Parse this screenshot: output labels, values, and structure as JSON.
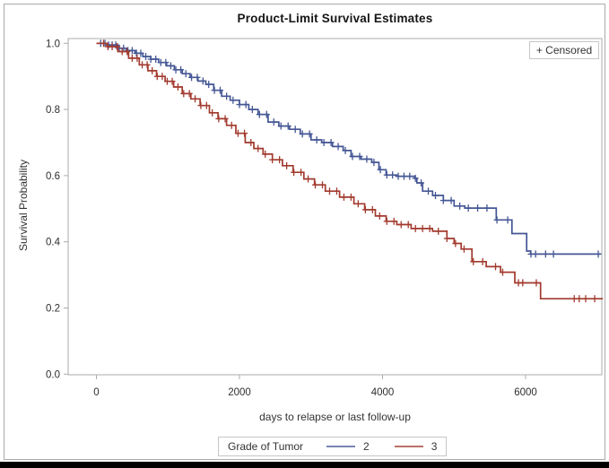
{
  "chart_data": {
    "type": "line",
    "subtype": "kaplan-meier-step",
    "title": "Product-Limit Survival Estimates",
    "censored_label": "+ Censored",
    "xlabel": "days to relapse or last follow-up",
    "ylabel": "Survival Probability",
    "legend_title": "Grade of Tumor",
    "legend_position": "bottom",
    "grid": false,
    "xlim": [
      -400,
      7150
    ],
    "ylim": [
      0.0,
      1.0
    ],
    "x_ticks": [
      0,
      2000,
      4000,
      6000
    ],
    "y_ticks": [
      0.0,
      0.2,
      0.4,
      0.6,
      0.8,
      1.0
    ],
    "frame_color": "#ababab",
    "tick_label_color": "#2e2e2e",
    "series": [
      {
        "name": "2",
        "color": "#445694",
        "points": [
          [
            0,
            1.0
          ],
          [
            160,
            0.995
          ],
          [
            300,
            0.985
          ],
          [
            420,
            0.978
          ],
          [
            540,
            0.97
          ],
          [
            650,
            0.96
          ],
          [
            760,
            0.952
          ],
          [
            870,
            0.942
          ],
          [
            980,
            0.932
          ],
          [
            1090,
            0.92
          ],
          [
            1200,
            0.908
          ],
          [
            1310,
            0.897
          ],
          [
            1420,
            0.886
          ],
          [
            1530,
            0.876
          ],
          [
            1640,
            0.858
          ],
          [
            1750,
            0.84
          ],
          [
            1870,
            0.828
          ],
          [
            2000,
            0.815
          ],
          [
            2130,
            0.8
          ],
          [
            2260,
            0.785
          ],
          [
            2400,
            0.762
          ],
          [
            2550,
            0.75
          ],
          [
            2700,
            0.74
          ],
          [
            2850,
            0.726
          ],
          [
            3000,
            0.708
          ],
          [
            3150,
            0.7
          ],
          [
            3300,
            0.688
          ],
          [
            3450,
            0.676
          ],
          [
            3560,
            0.658
          ],
          [
            3700,
            0.65
          ],
          [
            3850,
            0.64
          ],
          [
            3950,
            0.618
          ],
          [
            4050,
            0.602
          ],
          [
            4200,
            0.598
          ],
          [
            4450,
            0.592
          ],
          [
            4480,
            0.578
          ],
          [
            4560,
            0.553
          ],
          [
            4700,
            0.54
          ],
          [
            4850,
            0.525
          ],
          [
            5000,
            0.508
          ],
          [
            5150,
            0.502
          ],
          [
            5590,
            0.466
          ],
          [
            5810,
            0.425
          ],
          [
            6015,
            0.372
          ],
          [
            6070,
            0.363
          ],
          [
            7050,
            0.363
          ]
        ],
        "censor_times": [
          60,
          120,
          170,
          220,
          270,
          320,
          380,
          440,
          500,
          560,
          620,
          690,
          760,
          830,
          900,
          970,
          1040,
          1110,
          1180,
          1250,
          1330,
          1410,
          1490,
          1570,
          1650,
          1730,
          1820,
          1910,
          2000,
          2090,
          2180,
          2280,
          2380,
          2480,
          2580,
          2680,
          2780,
          2880,
          2980,
          3080,
          3180,
          3280,
          3380,
          3480,
          3580,
          3680,
          3780,
          3880,
          3970,
          4060,
          4140,
          4220,
          4300,
          4380,
          4460,
          4540,
          4640,
          4740,
          4850,
          4960,
          5080,
          5200,
          5330,
          5460,
          5600,
          5750,
          6075,
          6140,
          6280,
          6390,
          7016
        ]
      },
      {
        "name": "3",
        "color": "#A23A2E",
        "points": [
          [
            0,
            1.0
          ],
          [
            150,
            0.99
          ],
          [
            300,
            0.975
          ],
          [
            450,
            0.955
          ],
          [
            600,
            0.935
          ],
          [
            720,
            0.917
          ],
          [
            840,
            0.9
          ],
          [
            960,
            0.885
          ],
          [
            1080,
            0.868
          ],
          [
            1200,
            0.848
          ],
          [
            1320,
            0.832
          ],
          [
            1450,
            0.812
          ],
          [
            1580,
            0.79
          ],
          [
            1700,
            0.772
          ],
          [
            1820,
            0.752
          ],
          [
            1950,
            0.728
          ],
          [
            2080,
            0.7
          ],
          [
            2200,
            0.682
          ],
          [
            2330,
            0.665
          ],
          [
            2460,
            0.648
          ],
          [
            2600,
            0.63
          ],
          [
            2750,
            0.61
          ],
          [
            2900,
            0.59
          ],
          [
            3050,
            0.572
          ],
          [
            3200,
            0.553
          ],
          [
            3400,
            0.535
          ],
          [
            3600,
            0.515
          ],
          [
            3750,
            0.497
          ],
          [
            3900,
            0.478
          ],
          [
            4050,
            0.462
          ],
          [
            4200,
            0.452
          ],
          [
            4400,
            0.44
          ],
          [
            4700,
            0.432
          ],
          [
            4900,
            0.41
          ],
          [
            5000,
            0.395
          ],
          [
            5100,
            0.378
          ],
          [
            5250,
            0.34
          ],
          [
            5450,
            0.325
          ],
          [
            5650,
            0.308
          ],
          [
            5850,
            0.276
          ],
          [
            6210,
            0.228
          ],
          [
            7080,
            0.228
          ]
        ],
        "censor_times": [
          100,
          160,
          220,
          290,
          360,
          430,
          500,
          570,
          640,
          710,
          780,
          850,
          920,
          990,
          1060,
          1140,
          1220,
          1300,
          1380,
          1460,
          1540,
          1620,
          1710,
          1800,
          1890,
          1980,
          2070,
          2160,
          2260,
          2360,
          2460,
          2560,
          2660,
          2760,
          2860,
          2960,
          3060,
          3160,
          3260,
          3360,
          3460,
          3560,
          3660,
          3760,
          3860,
          3960,
          4060,
          4160,
          4260,
          4360,
          4460,
          4560,
          4660,
          4780,
          4900,
          5020,
          5140,
          5270,
          5400,
          5580,
          5680,
          5900,
          5960,
          6150,
          6680,
          6750,
          6840,
          6966
        ]
      }
    ]
  }
}
